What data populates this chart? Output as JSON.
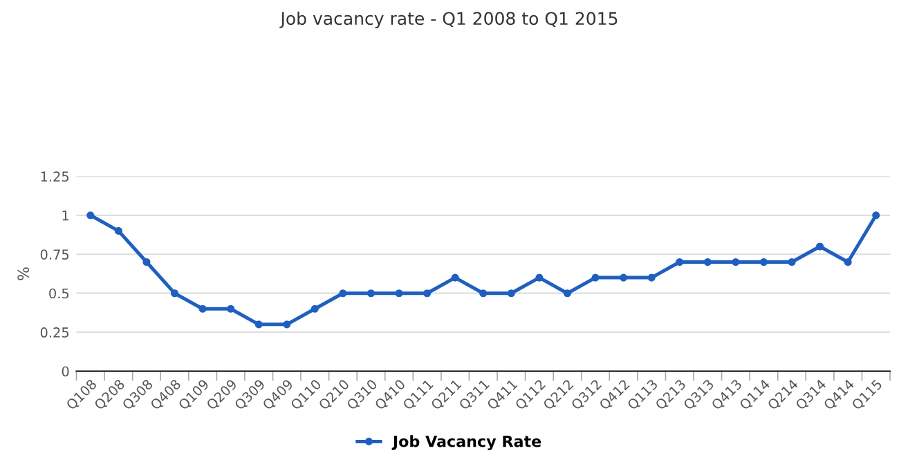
{
  "chart_data": {
    "type": "line",
    "title": "Job vacancy rate - Q1 2008 to Q1 2015",
    "ylabel": "%",
    "categories": [
      "Q108",
      "Q208",
      "Q308",
      "Q408",
      "Q109",
      "Q209",
      "Q309",
      "Q409",
      "Q110",
      "Q210",
      "Q310",
      "Q410",
      "Q111",
      "Q211",
      "Q311",
      "Q411",
      "Q112",
      "Q212",
      "Q312",
      "Q412",
      "Q113",
      "Q213",
      "Q313",
      "Q413",
      "Q114",
      "Q214",
      "Q314",
      "Q414",
      "Q115"
    ],
    "series": [
      {
        "name": "Job Vacancy Rate",
        "color": "#1f5fbf",
        "values": [
          1,
          0.9,
          0.7,
          0.5,
          0.4,
          0.4,
          0.3,
          0.3,
          0.4,
          0.5,
          0.5,
          0.5,
          0.5,
          0.6,
          0.5,
          0.5,
          0.6,
          0.5,
          0.6,
          0.6,
          0.6,
          0.7,
          0.7,
          0.7,
          0.7,
          0.7,
          0.8,
          0.7,
          1
        ]
      }
    ],
    "ylim": [
      0,
      1.25
    ],
    "yticks": [
      0,
      0.25,
      0.5,
      0.75,
      1,
      1.25
    ],
    "grid": "y",
    "legend": "bottom",
    "marker": "circle",
    "line_style": "solid"
  }
}
